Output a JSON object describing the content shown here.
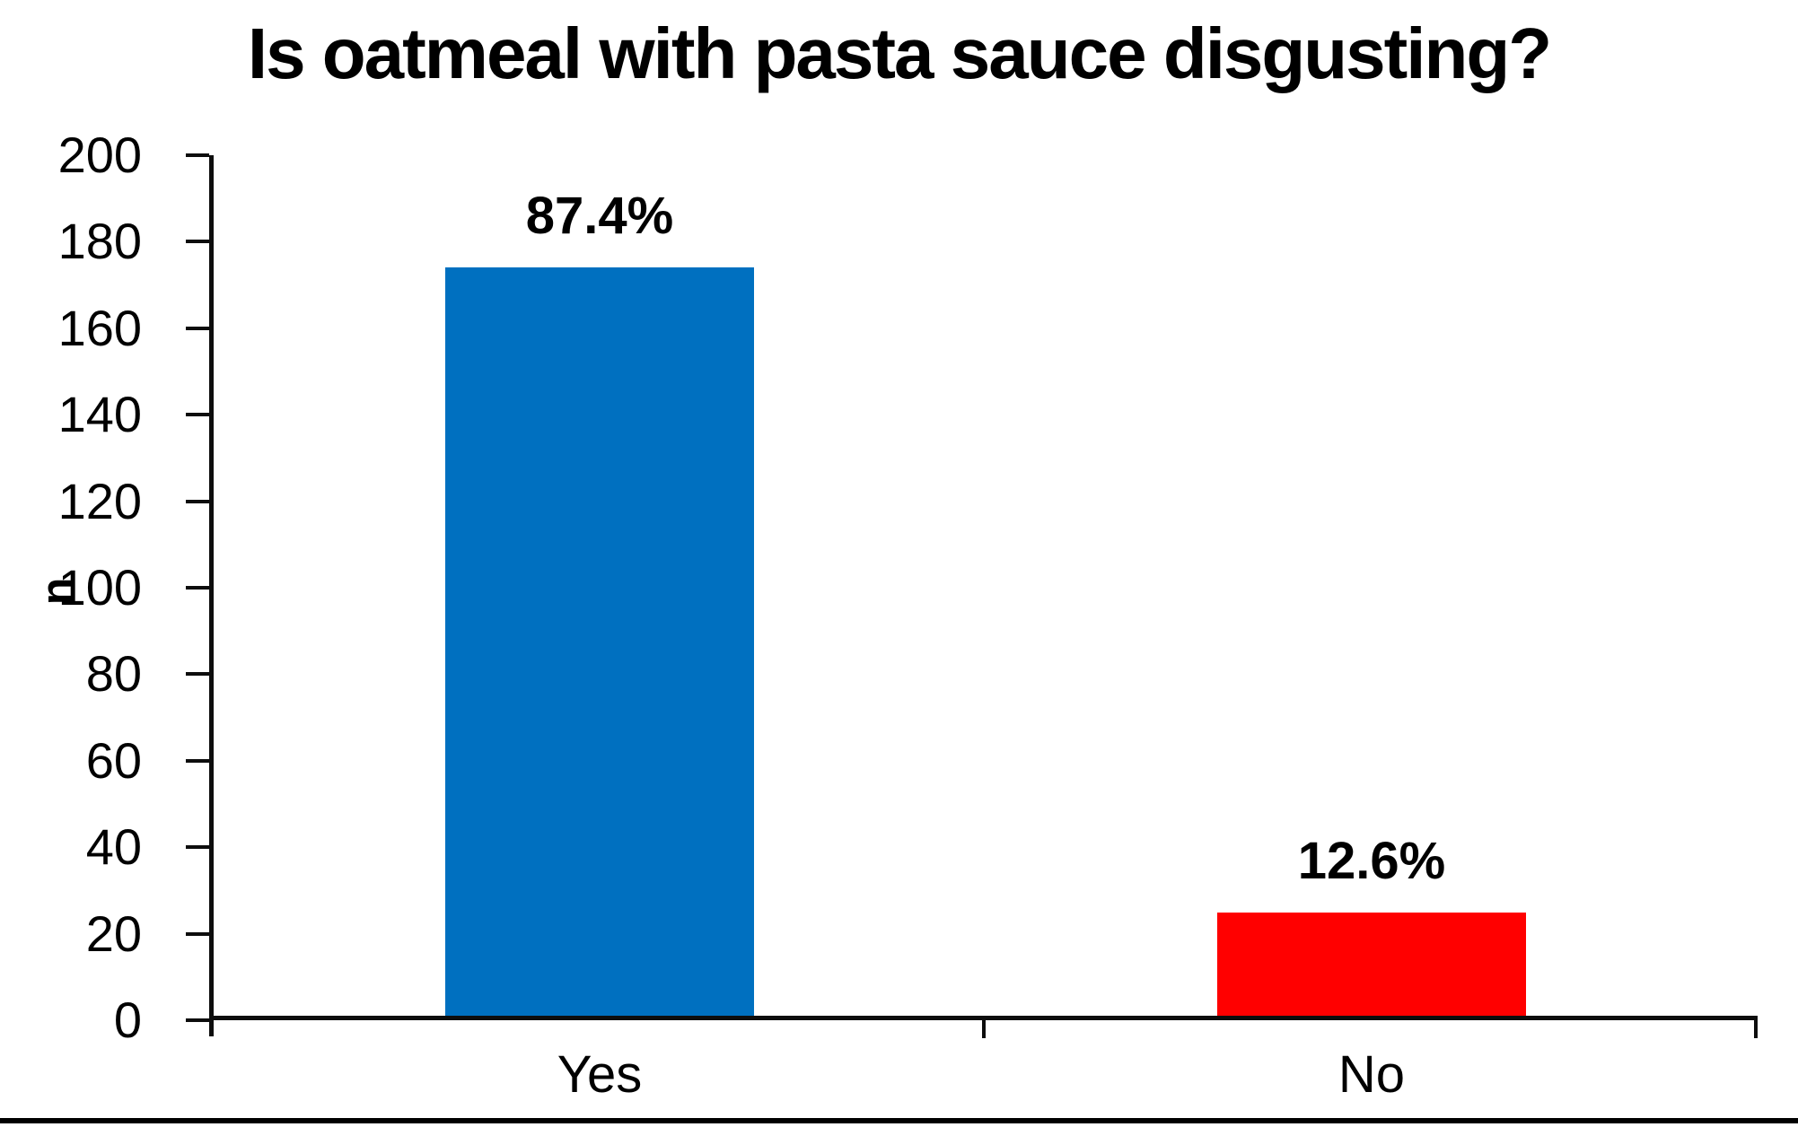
{
  "chart_data": {
    "type": "bar",
    "title": "Is oatmeal with pasta sauce disgusting?",
    "xlabel": "",
    "ylabel": "n",
    "categories": [
      "Yes",
      "No"
    ],
    "values": [
      174,
      25
    ],
    "bar_labels": [
      "87.4%",
      "12.6%"
    ],
    "bar_colors": [
      "#0070C0",
      "#FF0000"
    ],
    "ylim": [
      0,
      200
    ],
    "ytick_step": 20,
    "ytick_labels": [
      "0",
      "20",
      "40",
      "60",
      "80",
      "100",
      "120",
      "140",
      "160",
      "180",
      "200"
    ],
    "grid": "off",
    "legend": "none",
    "axis_color": "#0d0d0d",
    "background_color": "#ffffff"
  }
}
